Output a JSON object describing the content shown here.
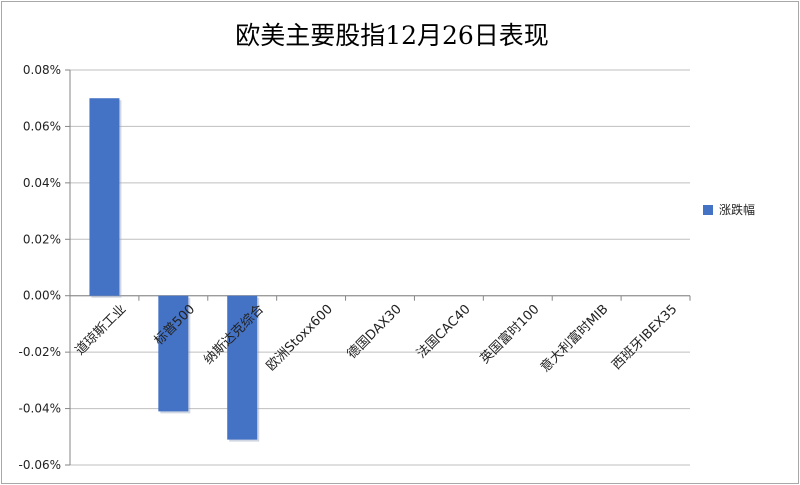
{
  "chart_data": {
    "type": "bar",
    "title": "欧美主要股指12月26日表现",
    "categories": [
      "道琼斯工业",
      "标普500",
      "纳斯达克综合",
      "欧洲Stoxx600",
      "德国DAX30",
      "法国CAC40",
      "英国富时100",
      "意大利富时MIB",
      "西班牙IBEX35"
    ],
    "series": [
      {
        "name": "涨跌幅",
        "values": [
          0.07,
          -0.041,
          -0.051,
          null,
          null,
          null,
          null,
          null,
          null
        ]
      }
    ],
    "ylim": [
      -0.06,
      0.08
    ],
    "yticks": [
      "0.08%",
      "0.06%",
      "0.04%",
      "0.02%",
      "0.00%",
      "-0.02%",
      "-0.04%",
      "-0.06%"
    ],
    "grid": true,
    "legend_position": "right",
    "colors": {
      "bar": "#4472C4",
      "grid": "#bfbfbf",
      "axis": "#868686"
    }
  }
}
